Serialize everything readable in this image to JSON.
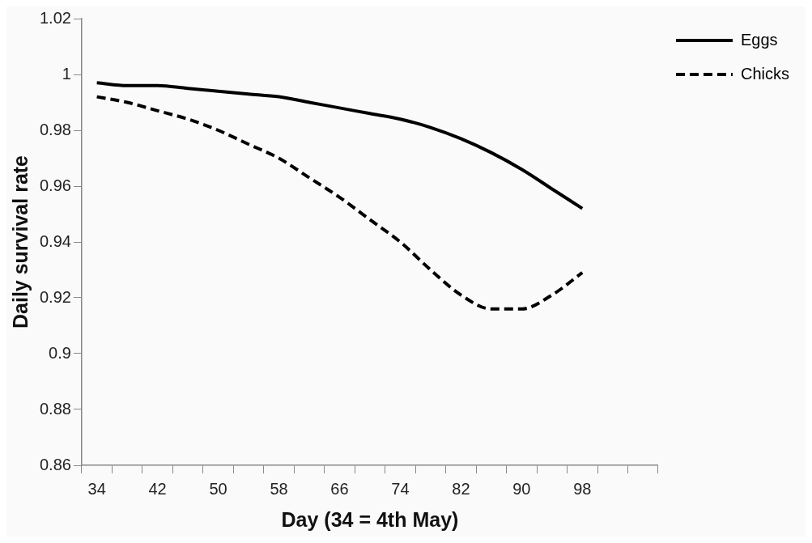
{
  "chart_data": {
    "type": "line",
    "xlabel": "Day (34 = 4th May)",
    "ylabel": "Daily survival rate",
    "categories": [
      "34",
      null,
      "42",
      null,
      "50",
      null,
      "58",
      null,
      "66",
      null,
      "74",
      null,
      "82",
      null,
      "90",
      null,
      "98",
      null,
      null
    ],
    "series": [
      {
        "name": "Eggs",
        "color": "#000000",
        "line_style": "solid",
        "values": [
          0.997,
          0.996,
          0.996,
          0.995,
          0.994,
          0.993,
          0.992,
          0.99,
          0.988,
          0.986,
          0.984,
          0.981,
          0.977,
          0.972,
          0.966,
          0.959,
          0.952,
          null,
          null
        ]
      },
      {
        "name": "Chicks",
        "color": "#000000",
        "line_style": "dashed",
        "values": [
          0.992,
          0.99,
          0.987,
          0.984,
          0.98,
          0.975,
          0.97,
          0.963,
          0.956,
          0.948,
          0.94,
          0.93,
          0.921,
          0.916,
          0.916,
          0.921,
          0.929,
          null,
          null
        ]
      }
    ],
    "ylim": [
      0.86,
      1.02
    ],
    "yticks": [
      0.86,
      0.88,
      0.9,
      0.92,
      0.94,
      0.96,
      0.98,
      1,
      1.02
    ],
    "grid": false,
    "legend": "top right",
    "marker": "none"
  }
}
